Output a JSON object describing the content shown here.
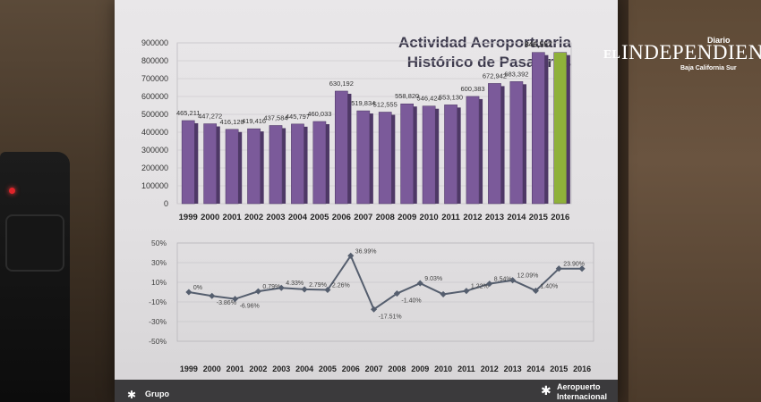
{
  "brand": {
    "el": "EL",
    "name": "INDEPENDIENTE",
    "tag": "Diario",
    "region": "Baja California Sur"
  },
  "slide": {
    "title_line1": "Actividad Aeroportuaria",
    "title_line2": "Histórico de Pasajeros",
    "footer_left": "Grupo",
    "footer_right_line1": "Aeropuerto",
    "footer_right_line2": "Internacional"
  },
  "colors": {
    "bar": "#7b5a9a",
    "bar_highlight": "#8fb13a",
    "line": "#555e6e"
  },
  "chart_data": [
    {
      "type": "bar",
      "categories": [
        "1999",
        "2000",
        "2001",
        "2002",
        "2003",
        "2004",
        "2005",
        "2006",
        "2007",
        "2008",
        "2009",
        "2010",
        "2011",
        "2012",
        "2013",
        "2014",
        "2015",
        "2016"
      ],
      "values": [
        465211,
        447272,
        416120,
        419416,
        437584,
        445797,
        460033,
        630192,
        519834,
        512555,
        558820,
        546424,
        553130,
        600383,
        672942,
        683392,
        846557,
        846557
      ],
      "value_labels": [
        "465,211",
        "447,272",
        "416,120",
        "419,416",
        "437,584",
        "445,797",
        "460,033",
        "630,192",
        "519,834",
        "512,555",
        "558,820",
        "546,424",
        "553,130",
        "600,383",
        "672,942",
        "683,392",
        "846,557",
        ""
      ],
      "y_ticks": [
        "900000",
        "800000",
        "700000",
        "600000",
        "500000",
        "400000",
        "300000",
        "200000",
        "100000",
        "0"
      ],
      "ylim": [
        0,
        900000
      ],
      "highlight_index": 17
    },
    {
      "type": "line",
      "categories": [
        "1999",
        "2000",
        "2001",
        "2002",
        "2003",
        "2004",
        "2005",
        "2006",
        "2007",
        "2008",
        "2009",
        "2010",
        "2011",
        "2012",
        "2013",
        "2014",
        "2015",
        "2016"
      ],
      "values": [
        0,
        -3.86,
        -6.96,
        0.79,
        4.33,
        2.79,
        2.26,
        36.99,
        -17.51,
        -1.4,
        9.03,
        -2.2,
        1.22,
        8.54,
        12.09,
        1.4,
        23.9,
        23.9
      ],
      "point_labels": [
        "0%",
        "-3.86%",
        "-6.96%",
        "0.79%",
        "4.33%",
        "2.79%",
        "2.26%",
        "36.99%",
        "-17.51%",
        "-1.40%",
        "9.03%",
        "",
        "1.22%",
        "8.54%",
        "12.09%",
        "1.40%",
        "23.90%",
        ""
      ],
      "y_ticks": [
        "50%",
        "30%",
        "10%",
        "-10%",
        "-30%",
        "-50%"
      ],
      "ylim": [
        -50,
        50
      ]
    }
  ]
}
